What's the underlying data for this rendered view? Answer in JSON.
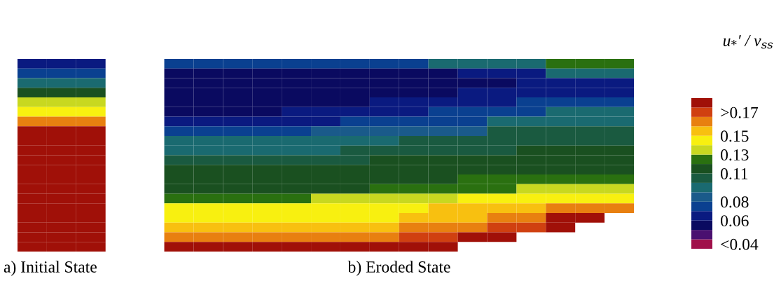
{
  "chart_data": {
    "type": "heatmap",
    "clabel": "u$_{*}$′ / v$_{ss}$",
    "annotations": [
      "a) Initial State",
      "b) Eroded State"
    ],
    "categories": [
      null,
      null,
      null,
      null,
      null,
      null,
      null,
      null,
      null,
      null,
      null,
      null,
      null,
      null,
      null,
      null,
      null,
      null,
      null,
      null,
      null
    ],
    "y_categories": [
      null,
      null,
      null,
      null,
      null,
      null,
      null,
      null,
      null,
      null,
      null,
      null,
      null,
      null,
      null,
      null,
      null,
      null,
      null,
      null
    ],
    "cells": [
      [
        0.065,
        0.065,
        0.065,
        null,
        null,
        0.075,
        0.075,
        0.075,
        0.075,
        0.075,
        0.075,
        0.075,
        0.075,
        0.075,
        0.095,
        0.095,
        0.095,
        0.095,
        0.125,
        0.125,
        0.125
      ],
      [
        0.075,
        0.075,
        0.075,
        null,
        null,
        0.055,
        0.055,
        0.055,
        0.055,
        0.055,
        0.055,
        0.055,
        0.055,
        0.055,
        0.055,
        0.065,
        0.065,
        0.065,
        0.095,
        0.095,
        0.095
      ],
      [
        0.095,
        0.095,
        0.095,
        null,
        null,
        0.055,
        0.055,
        0.055,
        0.055,
        0.055,
        0.055,
        0.055,
        0.055,
        0.055,
        0.055,
        0.055,
        0.055,
        0.065,
        0.065,
        0.065,
        0.065
      ],
      [
        0.115,
        0.115,
        0.115,
        null,
        null,
        0.055,
        0.055,
        0.055,
        0.055,
        0.055,
        0.055,
        0.055,
        0.055,
        0.055,
        0.055,
        0.065,
        0.065,
        0.065,
        0.065,
        0.065,
        0.065
      ],
      [
        0.135,
        0.135,
        0.135,
        null,
        null,
        0.055,
        0.055,
        0.055,
        0.055,
        0.055,
        0.055,
        0.055,
        0.065,
        0.065,
        0.065,
        0.065,
        0.065,
        0.075,
        0.075,
        0.075,
        0.075
      ],
      [
        0.145,
        0.145,
        0.145,
        null,
        null,
        0.055,
        0.055,
        0.055,
        0.055,
        0.065,
        0.065,
        0.065,
        0.065,
        0.065,
        0.075,
        0.075,
        0.075,
        0.075,
        0.095,
        0.095,
        0.095
      ],
      [
        0.165,
        0.165,
        0.165,
        null,
        null,
        0.065,
        0.065,
        0.065,
        0.065,
        0.065,
        0.065,
        0.075,
        0.075,
        0.075,
        0.075,
        0.075,
        0.095,
        0.095,
        0.095,
        0.095,
        0.095
      ],
      [
        0.185,
        0.185,
        0.185,
        null,
        null,
        0.075,
        0.075,
        0.075,
        0.075,
        0.075,
        0.085,
        0.085,
        0.085,
        0.085,
        0.085,
        0.085,
        0.105,
        0.105,
        0.105,
        0.105,
        0.105
      ],
      [
        0.185,
        0.185,
        0.185,
        null,
        null,
        0.095,
        0.095,
        0.095,
        0.095,
        0.095,
        0.095,
        0.095,
        0.095,
        0.105,
        0.105,
        0.105,
        0.105,
        0.105,
        0.105,
        0.105,
        0.105
      ],
      [
        0.185,
        0.185,
        0.185,
        null,
        null,
        0.095,
        0.095,
        0.095,
        0.095,
        0.095,
        0.095,
        0.105,
        0.105,
        0.105,
        0.105,
        0.105,
        0.105,
        0.115,
        0.115,
        0.115,
        0.115
      ],
      [
        0.185,
        0.185,
        0.185,
        null,
        null,
        0.105,
        0.105,
        0.105,
        0.105,
        0.105,
        0.105,
        0.105,
        0.115,
        0.115,
        0.115,
        0.115,
        0.115,
        0.115,
        0.115,
        0.115,
        0.115
      ],
      [
        0.185,
        0.185,
        0.185,
        null,
        null,
        0.115,
        0.115,
        0.115,
        0.115,
        0.115,
        0.115,
        0.115,
        0.115,
        0.115,
        0.115,
        0.115,
        0.115,
        0.115,
        0.115,
        0.115,
        0.115
      ],
      [
        0.185,
        0.185,
        0.185,
        null,
        null,
        0.115,
        0.115,
        0.115,
        0.115,
        0.115,
        0.115,
        0.115,
        0.115,
        0.115,
        0.115,
        0.125,
        0.125,
        0.125,
        0.125,
        0.125,
        0.125
      ],
      [
        0.185,
        0.185,
        0.185,
        null,
        null,
        0.115,
        0.115,
        0.115,
        0.115,
        0.115,
        0.115,
        0.115,
        0.125,
        0.125,
        0.125,
        0.125,
        0.125,
        0.135,
        0.135,
        0.135,
        0.135
      ],
      [
        0.185,
        0.185,
        0.185,
        null,
        null,
        0.125,
        0.125,
        0.125,
        0.125,
        0.125,
        0.135,
        0.135,
        0.135,
        0.135,
        0.135,
        0.145,
        0.145,
        0.145,
        0.145,
        0.145,
        0.145
      ],
      [
        0.185,
        0.185,
        0.185,
        null,
        null,
        0.145,
        0.145,
        0.145,
        0.145,
        0.145,
        0.145,
        0.145,
        0.145,
        0.145,
        0.155,
        0.155,
        0.155,
        0.155,
        0.165,
        0.165,
        0.165
      ],
      [
        0.185,
        0.185,
        0.185,
        null,
        null,
        0.145,
        0.145,
        0.145,
        0.145,
        0.145,
        0.145,
        0.145,
        0.145,
        0.155,
        0.155,
        0.155,
        0.165,
        0.165,
        0.185,
        0.185,
        null
      ],
      [
        0.185,
        0.185,
        0.185,
        null,
        null,
        0.155,
        0.155,
        0.155,
        0.155,
        0.155,
        0.155,
        0.155,
        0.155,
        0.165,
        0.165,
        0.165,
        0.175,
        0.175,
        0.185,
        null,
        null
      ],
      [
        0.185,
        0.185,
        0.185,
        null,
        null,
        0.165,
        0.165,
        0.165,
        0.165,
        0.165,
        0.165,
        0.165,
        0.165,
        0.175,
        0.175,
        0.185,
        0.185,
        null,
        null,
        null,
        null
      ],
      [
        0.185,
        0.185,
        0.185,
        null,
        null,
        0.185,
        0.185,
        0.185,
        0.185,
        0.185,
        0.185,
        0.185,
        0.185,
        0.185,
        0.185,
        null,
        null,
        null,
        null,
        null,
        null
      ]
    ],
    "clim": [
      0.03,
      0.19
    ],
    "cticks": [
      {
        "value": 0.175,
        "label": ">0.17"
      },
      0.15,
      0.13,
      0.11,
      0.08,
      0.06,
      {
        "value": 0.035,
        "label": "<0.04"
      }
    ],
    "colors": [
      "#a0104a",
      "#4a1070",
      "#0a0a60",
      "#0a1a80",
      "#0a4090",
      "#1a5a8a",
      "#1a6a70",
      "#1a5a40",
      "#1a5020",
      "#2a7010",
      "#c8d820",
      "#f8f010",
      "#f8c010",
      "#e88010",
      "#d04010",
      "#a01008"
    ]
  }
}
